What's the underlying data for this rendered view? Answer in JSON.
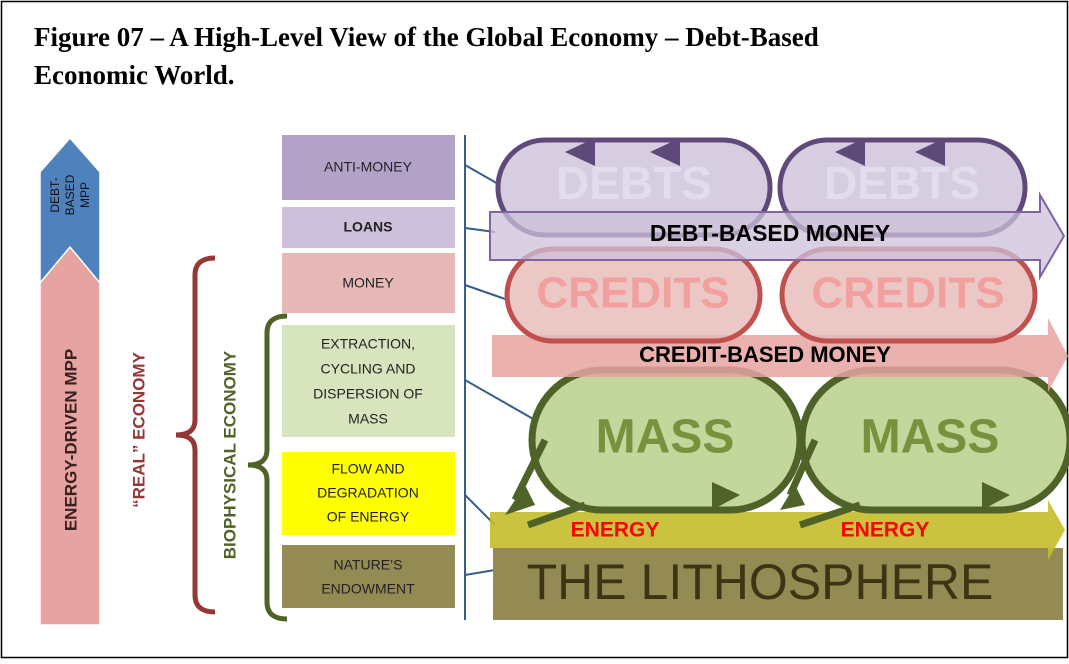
{
  "title": [
    "Figure 07 – A High-Level View of the Global Economy – Debt-Based",
    "Economic World."
  ],
  "left_arrows": {
    "debt_based_mpp": [
      "DEBT-",
      "BASED",
      "MPP"
    ],
    "energy_driven_mpp": "ENERGY-DRIVEN MPP"
  },
  "braces": {
    "real_economy": "“REAL” ECONOMY",
    "biophysical_economy": "BIOPHYSICAL ECONOMY"
  },
  "levels": [
    {
      "lines": [
        "ANTI-MONEY"
      ]
    },
    {
      "lines": [
        "LOANS"
      ]
    },
    {
      "lines": [
        "MONEY"
      ]
    },
    {
      "lines": [
        "EXTRACTION,",
        "CYCLING AND",
        "DISPERSION OF",
        "MASS"
      ]
    },
    {
      "lines": [
        "FLOW AND",
        "DEGRADATION",
        "OF ENERGY"
      ]
    },
    {
      "lines": [
        "NATURE’S",
        "ENDOWMENT"
      ]
    }
  ],
  "shapes": {
    "debts": [
      "DEBTS",
      "DEBTS"
    ],
    "debt_based_money": "DEBT-BASED MONEY",
    "credits": [
      "CREDITS",
      "CREDITS"
    ],
    "credit_based_money": "CREDIT-BASED MONEY",
    "mass": [
      "MASS",
      "MASS"
    ],
    "energy": [
      "ENERGY",
      "ENERGY"
    ],
    "lithosphere": "THE LITHOSPHERE"
  }
}
